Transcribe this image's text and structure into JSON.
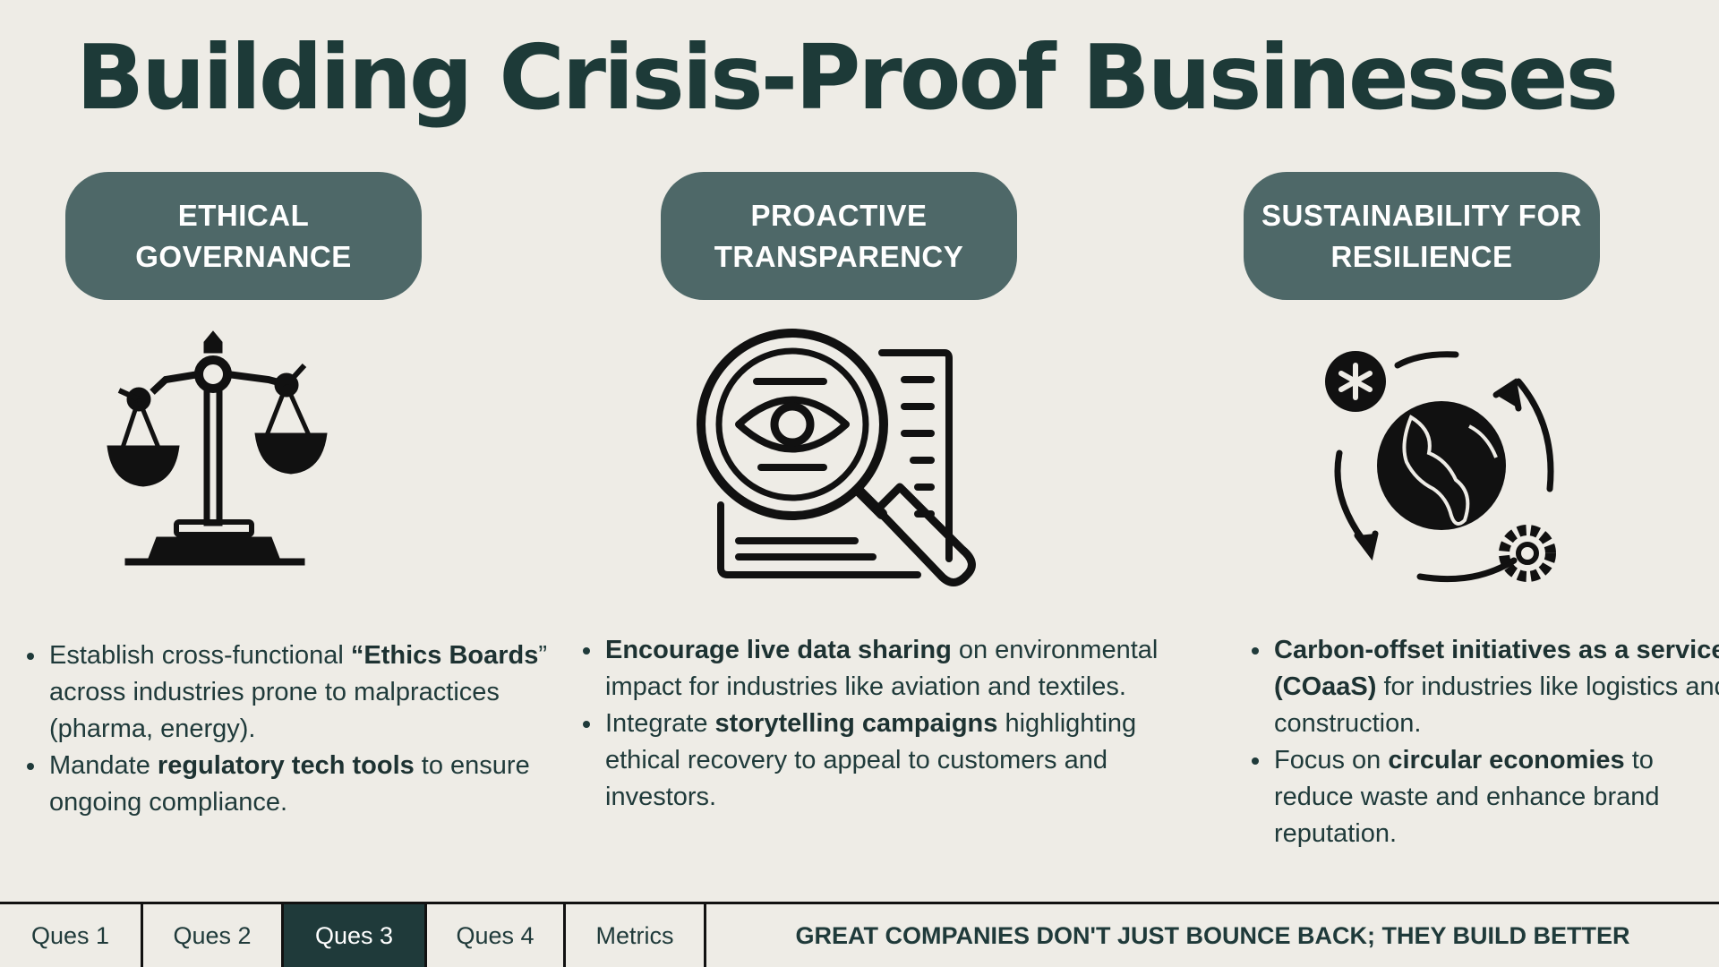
{
  "title": "Building Crisis-Proof Businesses",
  "columns": [
    {
      "heading_line1": "ETHICAL",
      "heading_line2": "GOVERNANCE",
      "icon": "scales-of-justice-icon",
      "bullet1_pre": "Establish cross-functional ",
      "bullet1_bold": "“Ethics Boards",
      "bullet1_post": "” across industries prone to malpractices (pharma, energy).",
      "bullet2_pre": "Mandate ",
      "bullet2_bold": "regulatory tech tools",
      "bullet2_post": " to ensure ongoing compliance."
    },
    {
      "heading_line1": "PROACTIVE",
      "heading_line2": "TRANSPARENCY",
      "icon": "magnifier-eye-document-icon",
      "bullet1_pre": "",
      "bullet1_bold": "Encourage live data sharing",
      "bullet1_post": " on environmental impact for industries like aviation and textiles.",
      "bullet2_pre": "Integrate ",
      "bullet2_bold": "storytelling campaigns",
      "bullet2_post": " highlighting ethical recovery to appeal to customers and investors."
    },
    {
      "heading_line1": "SUSTAINABILITY FOR",
      "heading_line2": "RESILIENCE",
      "icon": "globe-cycle-icon",
      "bullet1_pre": "",
      "bullet1_bold": "Carbon-offset initiatives as a service (COaaS)",
      "bullet1_post": " for industries like logistics and construction.",
      "bullet2_pre": "Focus on ",
      "bullet2_bold": "circular economies",
      "bullet2_post": " to reduce waste and enhance brand reputation."
    }
  ],
  "nav": {
    "tabs": [
      "Ques 1",
      "Ques 2",
      "Ques 3",
      "Ques 4",
      "Metrics"
    ],
    "active": "Ques 3",
    "motto": "GREAT COMPANIES DON'T JUST BOUNCE BACK; THEY BUILD BETTER"
  },
  "colors": {
    "background": "#eeece6",
    "pill": "#4e6868",
    "text": "#1f3a3a",
    "active_tab": "#1f3a3a"
  }
}
